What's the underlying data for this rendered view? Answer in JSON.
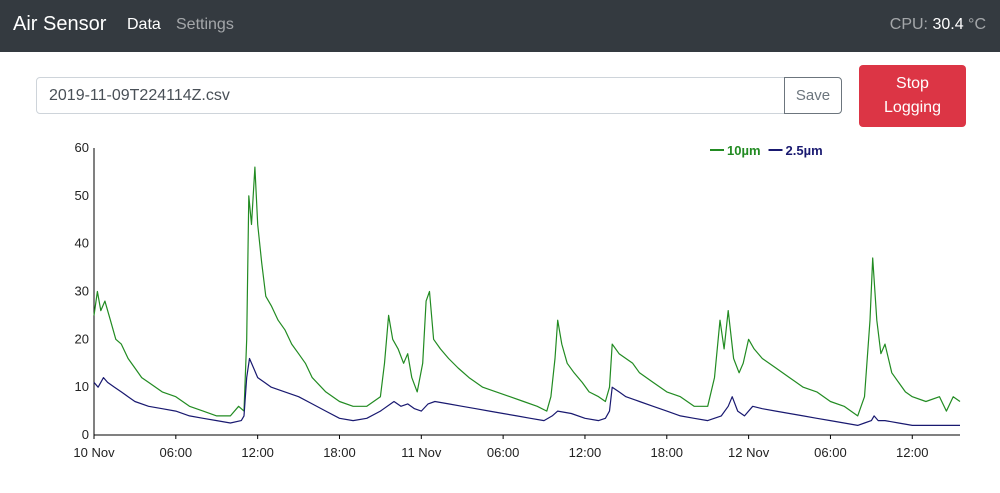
{
  "navbar": {
    "brand": "Air Sensor",
    "links": [
      {
        "label": "Data",
        "active": true
      },
      {
        "label": "Settings",
        "active": false
      }
    ],
    "cpu_label": "CPU:",
    "cpu_value": "30.4",
    "cpu_unit": "°C"
  },
  "logging": {
    "filename": "2019-11-09T224114Z.csv",
    "save_label": "Save",
    "stop_label": "Stop Logging"
  },
  "colors": {
    "navbar_bg": "#343a40",
    "danger": "#dc3545",
    "series_10um": "#228b22",
    "series_2_5um": "#191970"
  },
  "chart_data": {
    "type": "line",
    "x_ticks": [
      "10 Nov",
      "06:00",
      "12:00",
      "18:00",
      "11 Nov",
      "06:00",
      "12:00",
      "18:00",
      "12 Nov",
      "06:00",
      "12:00"
    ],
    "x_tick_hours": [
      0,
      6,
      12,
      18,
      24,
      30,
      36,
      42,
      48,
      54,
      60
    ],
    "xlim_hours": [
      0,
      63.5
    ],
    "ylim": [
      0,
      60
    ],
    "y_ticks": [
      0,
      10,
      20,
      30,
      40,
      50,
      60
    ],
    "legend": {
      "position": "top-center"
    },
    "series": [
      {
        "name": "10µm",
        "color": "#228b22",
        "points": [
          [
            0,
            25
          ],
          [
            0.25,
            30
          ],
          [
            0.5,
            26
          ],
          [
            0.8,
            28
          ],
          [
            1.2,
            24
          ],
          [
            1.6,
            20
          ],
          [
            2,
            19
          ],
          [
            2.5,
            16
          ],
          [
            3,
            14
          ],
          [
            3.5,
            12
          ],
          [
            4,
            11
          ],
          [
            5,
            9
          ],
          [
            6,
            8
          ],
          [
            7,
            6
          ],
          [
            8,
            5
          ],
          [
            9,
            4
          ],
          [
            10,
            4
          ],
          [
            10.6,
            6
          ],
          [
            11,
            5
          ],
          [
            11.2,
            20
          ],
          [
            11.35,
            50
          ],
          [
            11.55,
            44
          ],
          [
            11.8,
            56
          ],
          [
            12,
            44
          ],
          [
            12.3,
            36
          ],
          [
            12.6,
            29
          ],
          [
            13,
            27
          ],
          [
            13.5,
            24
          ],
          [
            14,
            22
          ],
          [
            14.5,
            19
          ],
          [
            15,
            17
          ],
          [
            15.5,
            15
          ],
          [
            16,
            12
          ],
          [
            17,
            9
          ],
          [
            18,
            7
          ],
          [
            19,
            6
          ],
          [
            20,
            6
          ],
          [
            21,
            8
          ],
          [
            21.3,
            15
          ],
          [
            21.6,
            25
          ],
          [
            21.9,
            20
          ],
          [
            22.3,
            18
          ],
          [
            22.7,
            15
          ],
          [
            23,
            17
          ],
          [
            23.3,
            12
          ],
          [
            23.7,
            9
          ],
          [
            24.1,
            15
          ],
          [
            24.35,
            28
          ],
          [
            24.6,
            30
          ],
          [
            24.9,
            20
          ],
          [
            25.4,
            18
          ],
          [
            26,
            16
          ],
          [
            26.7,
            14
          ],
          [
            27.5,
            12
          ],
          [
            28.5,
            10
          ],
          [
            29.5,
            9
          ],
          [
            30.5,
            8
          ],
          [
            31.5,
            7
          ],
          [
            32.5,
            6
          ],
          [
            33.2,
            5
          ],
          [
            33.5,
            8
          ],
          [
            33.8,
            16
          ],
          [
            34,
            24
          ],
          [
            34.3,
            19
          ],
          [
            34.7,
            15
          ],
          [
            35.2,
            13
          ],
          [
            35.8,
            11
          ],
          [
            36.3,
            9
          ],
          [
            37,
            8
          ],
          [
            37.5,
            7
          ],
          [
            37.8,
            10
          ],
          [
            38,
            19
          ],
          [
            38.5,
            17
          ],
          [
            39,
            16
          ],
          [
            39.5,
            15
          ],
          [
            40,
            13
          ],
          [
            41,
            11
          ],
          [
            42,
            9
          ],
          [
            43,
            8
          ],
          [
            44,
            6
          ],
          [
            45,
            6
          ],
          [
            45.5,
            12
          ],
          [
            45.9,
            24
          ],
          [
            46.2,
            18
          ],
          [
            46.5,
            26
          ],
          [
            46.9,
            16
          ],
          [
            47.3,
            13
          ],
          [
            47.6,
            15
          ],
          [
            48,
            20
          ],
          [
            48.4,
            18
          ],
          [
            49,
            16
          ],
          [
            50,
            14
          ],
          [
            51,
            12
          ],
          [
            52,
            10
          ],
          [
            53,
            9
          ],
          [
            54,
            7
          ],
          [
            55,
            6
          ],
          [
            56,
            4
          ],
          [
            56.5,
            8
          ],
          [
            56.9,
            24
          ],
          [
            57.1,
            37
          ],
          [
            57.4,
            24
          ],
          [
            57.7,
            17
          ],
          [
            58,
            19
          ],
          [
            58.5,
            13
          ],
          [
            59,
            11
          ],
          [
            59.5,
            9
          ],
          [
            60,
            8
          ],
          [
            61,
            7
          ],
          [
            62,
            8
          ],
          [
            62.5,
            5
          ],
          [
            63,
            8
          ],
          [
            63.5,
            7
          ]
        ]
      },
      {
        "name": "2.5µm",
        "color": "#191970",
        "points": [
          [
            0,
            11
          ],
          [
            0.3,
            10
          ],
          [
            0.7,
            12
          ],
          [
            1,
            11
          ],
          [
            1.5,
            10
          ],
          [
            2,
            9
          ],
          [
            2.5,
            8
          ],
          [
            3,
            7
          ],
          [
            4,
            6
          ],
          [
            5,
            5.5
          ],
          [
            6,
            5
          ],
          [
            7,
            4
          ],
          [
            8,
            3.5
          ],
          [
            9,
            3
          ],
          [
            10,
            2.5
          ],
          [
            10.8,
            3
          ],
          [
            11,
            4
          ],
          [
            11.2,
            12
          ],
          [
            11.4,
            16
          ],
          [
            11.7,
            14
          ],
          [
            12,
            12
          ],
          [
            12.5,
            11
          ],
          [
            13,
            10
          ],
          [
            14,
            9
          ],
          [
            15,
            8
          ],
          [
            16,
            6.5
          ],
          [
            17,
            5
          ],
          [
            18,
            3.5
          ],
          [
            19,
            3
          ],
          [
            20,
            3.5
          ],
          [
            21,
            5
          ],
          [
            22,
            7
          ],
          [
            22.5,
            6
          ],
          [
            23,
            6.5
          ],
          [
            23.5,
            5.5
          ],
          [
            24,
            5
          ],
          [
            24.5,
            6.5
          ],
          [
            25,
            7
          ],
          [
            26,
            6.5
          ],
          [
            27,
            6
          ],
          [
            28,
            5.5
          ],
          [
            29,
            5
          ],
          [
            30,
            4.5
          ],
          [
            31,
            4
          ],
          [
            32,
            3.5
          ],
          [
            33,
            3
          ],
          [
            33.6,
            4
          ],
          [
            34,
            5
          ],
          [
            35,
            4.5
          ],
          [
            36,
            3.5
          ],
          [
            37,
            3
          ],
          [
            37.5,
            3.5
          ],
          [
            37.8,
            5
          ],
          [
            38,
            10
          ],
          [
            38.5,
            9
          ],
          [
            39,
            8
          ],
          [
            40,
            7
          ],
          [
            41,
            6
          ],
          [
            42,
            5
          ],
          [
            43,
            4
          ],
          [
            44,
            3.5
          ],
          [
            45,
            3
          ],
          [
            46,
            4
          ],
          [
            46.5,
            6
          ],
          [
            46.8,
            8
          ],
          [
            47.2,
            5
          ],
          [
            47.7,
            4
          ],
          [
            48.3,
            6
          ],
          [
            49,
            5.5
          ],
          [
            50,
            5
          ],
          [
            51,
            4.5
          ],
          [
            52,
            4
          ],
          [
            53,
            3.5
          ],
          [
            54,
            3
          ],
          [
            55,
            2.5
          ],
          [
            56,
            2
          ],
          [
            56.5,
            2.5
          ],
          [
            57,
            3
          ],
          [
            57.2,
            4
          ],
          [
            57.5,
            3
          ],
          [
            58,
            3
          ],
          [
            59,
            2.5
          ],
          [
            60,
            2
          ],
          [
            61,
            2
          ],
          [
            62,
            2
          ],
          [
            63,
            2
          ],
          [
            63.5,
            2
          ]
        ]
      }
    ]
  }
}
